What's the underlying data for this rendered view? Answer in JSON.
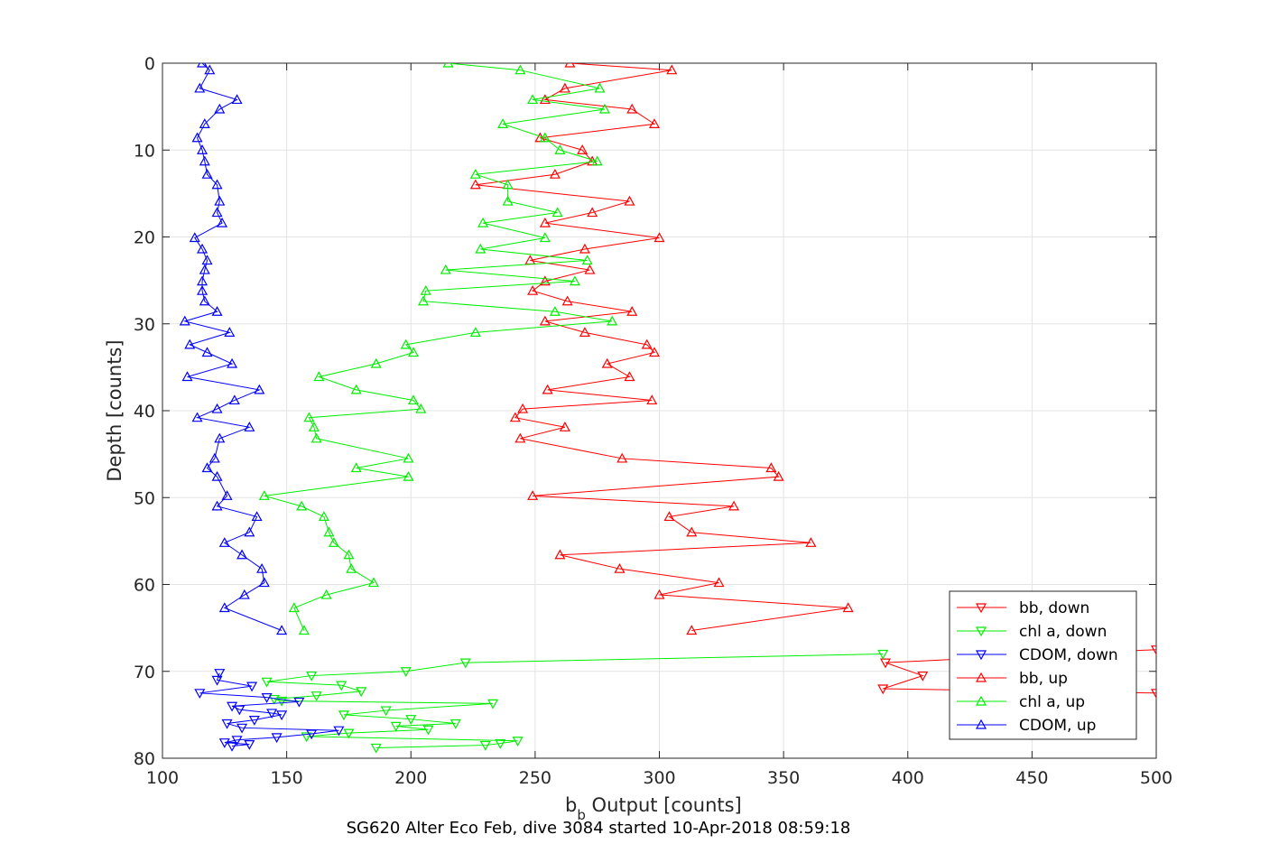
{
  "chart_data": {
    "type": "line",
    "caption": "SG620 Alter Eco Feb, dive 3084 started 10-Apr-2018 08:59:18",
    "xlabel": "b",
    "xlabel_subscript": "b",
    "xlabel_suffix": " Output [counts]",
    "ylabel": "Depth [counts]",
    "xlim": [
      100,
      500
    ],
    "ylim": [
      0,
      80
    ],
    "y_reversed": true,
    "grid": true,
    "legend_position": "bottom-right",
    "x_ticks": [
      100,
      150,
      200,
      250,
      300,
      350,
      400,
      450,
      500
    ],
    "y_ticks": [
      0,
      10,
      20,
      30,
      40,
      50,
      60,
      70,
      80
    ],
    "series": [
      {
        "name": "bb, down",
        "color": "#ff0000",
        "marker": "triangle-down",
        "x": [
          500,
          391,
          406,
          390,
          500
        ],
        "y": [
          67.5,
          69.0,
          70.5,
          72.0,
          72.5
        ]
      },
      {
        "name": "chl a, down",
        "color": "#00ee00",
        "marker": "triangle-down",
        "x": [
          390,
          222,
          198,
          160,
          142,
          172,
          180,
          162,
          145,
          148,
          233,
          190,
          173,
          200,
          218,
          194,
          207,
          175,
          158,
          243,
          236,
          230,
          186
        ],
        "y": [
          68.0,
          69.0,
          70.0,
          70.5,
          71.2,
          71.6,
          72.3,
          72.8,
          73.2,
          73.4,
          73.7,
          74.5,
          75.0,
          75.5,
          76.0,
          76.3,
          76.7,
          77.1,
          77.5,
          78.0,
          78.3,
          78.5,
          78.8
        ]
      },
      {
        "name": "CDOM, down",
        "color": "#0000ff",
        "marker": "triangle-down",
        "x": [
          123,
          122,
          136,
          115,
          142,
          155,
          128,
          131,
          144,
          148,
          137,
          126,
          132,
          171,
          160,
          146,
          130,
          125,
          135,
          128
        ],
        "y": [
          70.2,
          71.0,
          71.7,
          72.5,
          73.0,
          73.5,
          74.0,
          74.4,
          74.8,
          75.0,
          75.6,
          76.0,
          76.5,
          76.8,
          77.2,
          77.6,
          77.9,
          78.2,
          78.4,
          78.6
        ]
      },
      {
        "name": "bb, up",
        "color": "#ff0000",
        "marker": "triangle-up",
        "x": [
          264,
          305,
          262,
          254,
          289,
          298,
          252,
          269,
          273,
          258,
          226,
          288,
          273,
          254,
          300,
          270,
          248,
          272,
          254,
          249,
          263,
          289,
          254,
          270,
          295,
          298,
          279,
          288,
          255,
          297,
          245,
          242,
          262,
          244,
          285,
          345,
          348,
          249,
          330,
          304,
          313,
          361,
          260,
          284,
          324,
          300,
          376,
          313
        ],
        "y": [
          0.0,
          0.8,
          2.9,
          4.2,
          5.3,
          7.0,
          8.6,
          10.0,
          11.3,
          12.8,
          14.0,
          15.9,
          17.2,
          18.4,
          20.1,
          21.4,
          22.7,
          23.8,
          25.1,
          26.2,
          27.4,
          28.6,
          29.7,
          31.0,
          32.4,
          33.3,
          34.6,
          36.1,
          37.6,
          38.8,
          39.8,
          40.8,
          41.9,
          43.2,
          45.5,
          46.6,
          47.6,
          49.8,
          51.0,
          52.2,
          54.0,
          55.2,
          56.6,
          58.2,
          59.8,
          61.2,
          62.7,
          65.3
        ]
      },
      {
        "name": "chl a, up",
        "color": "#00ee00",
        "marker": "triangle-up",
        "x": [
          215,
          244,
          276,
          249,
          278,
          237,
          254,
          260,
          275,
          226,
          239,
          239,
          259,
          229,
          254,
          228,
          271,
          214,
          266,
          206,
          205,
          258,
          281,
          226,
          198,
          201,
          186,
          163,
          178,
          201,
          204,
          159,
          161,
          162,
          199,
          178,
          199,
          141,
          156,
          165,
          167,
          169,
          175,
          176,
          185,
          166,
          153,
          157
        ],
        "y": [
          0.0,
          0.8,
          2.9,
          4.2,
          5.3,
          7.0,
          8.6,
          10.0,
          11.3,
          12.8,
          14.0,
          15.9,
          17.2,
          18.4,
          20.1,
          21.4,
          22.7,
          23.8,
          25.1,
          26.2,
          27.4,
          28.6,
          29.7,
          31.0,
          32.4,
          33.3,
          34.6,
          36.1,
          37.6,
          38.8,
          39.8,
          40.8,
          41.9,
          43.2,
          45.5,
          46.6,
          47.6,
          49.8,
          51.0,
          52.2,
          54.0,
          55.2,
          56.6,
          58.2,
          59.8,
          61.2,
          62.7,
          65.3
        ]
      },
      {
        "name": "CDOM, up",
        "color": "#0000ff",
        "marker": "triangle-up",
        "x": [
          116,
          119,
          115,
          130,
          123,
          117,
          114,
          116,
          117,
          118,
          122,
          123,
          122,
          124,
          113,
          116,
          118,
          117,
          116,
          116,
          117,
          122,
          109,
          127,
          111,
          118,
          128,
          110,
          139,
          129,
          122,
          114,
          135,
          123,
          121,
          118,
          122,
          126,
          122,
          138,
          135,
          125,
          132,
          140,
          141,
          133,
          125,
          148
        ],
        "y": [
          0.0,
          0.8,
          2.9,
          4.2,
          5.3,
          7.0,
          8.6,
          10.0,
          11.3,
          12.8,
          14.0,
          15.9,
          17.2,
          18.4,
          20.1,
          21.4,
          22.7,
          23.8,
          25.1,
          26.2,
          27.4,
          28.6,
          29.7,
          31.0,
          32.4,
          33.3,
          34.6,
          36.1,
          37.6,
          38.8,
          39.8,
          40.8,
          41.9,
          43.2,
          45.5,
          46.6,
          47.6,
          49.8,
          51.0,
          52.2,
          54.0,
          55.2,
          56.6,
          58.2,
          59.8,
          61.2,
          62.7,
          65.3
        ]
      }
    ]
  }
}
